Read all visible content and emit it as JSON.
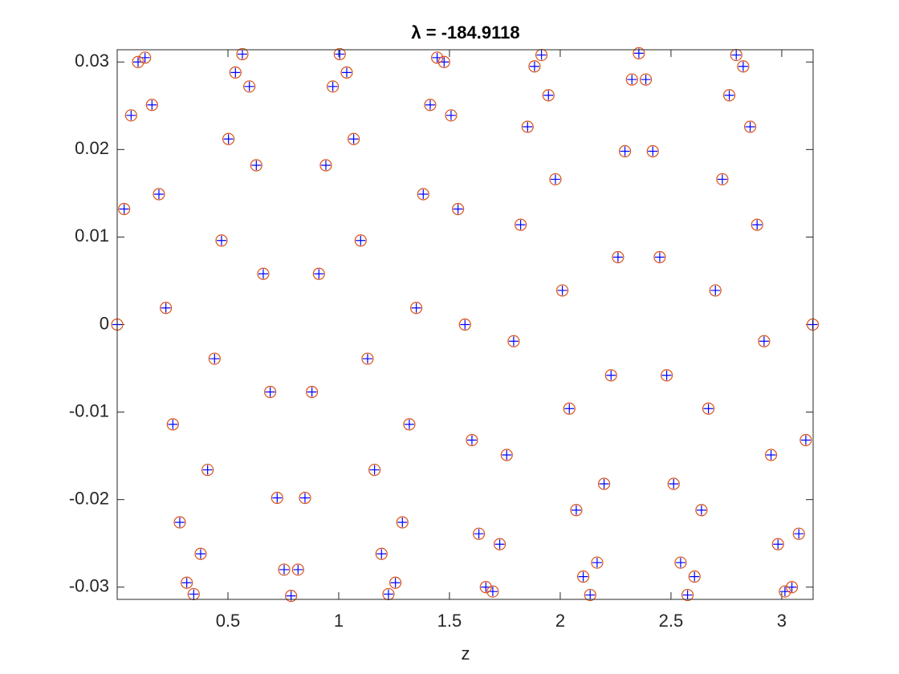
{
  "chart_data": {
    "type": "scatter",
    "title": "λ = -184.9118",
    "xlabel": "z",
    "xlim": [
      0,
      3.1416
    ],
    "ylim": [
      -0.0314,
      0.0314
    ],
    "xticks": [
      0.5,
      1,
      1.5,
      2,
      2.5,
      3
    ],
    "yticks": [
      -0.03,
      -0.02,
      -0.01,
      0,
      0.01,
      0.02,
      0.03
    ],
    "x": [
      0,
      0.0314,
      0.0628,
      0.0942,
      0.1256,
      0.157,
      0.1884,
      0.2198,
      0.2512,
      0.2826,
      0.314,
      0.3454,
      0.3768,
      0.4082,
      0.4396,
      0.471,
      0.5024,
      0.5338,
      0.5652,
      0.5966,
      0.628,
      0.6594,
      0.6908,
      0.7222,
      0.7536,
      0.785,
      0.8164,
      0.8478,
      0.8792,
      0.9106,
      0.942,
      0.9734,
      1.0048,
      1.0362,
      1.0676,
      1.099,
      1.1304,
      1.1618,
      1.1932,
      1.2246,
      1.256,
      1.2874,
      1.3188,
      1.3502,
      1.3816,
      1.413,
      1.4444,
      1.4758,
      1.5072,
      1.5386,
      1.57,
      1.6014,
      1.6328,
      1.6642,
      1.6956,
      1.727,
      1.7584,
      1.7898,
      1.8212,
      1.8526,
      1.884,
      1.9154,
      1.9468,
      1.9782,
      2.0096,
      2.041,
      2.0724,
      2.1038,
      2.1352,
      2.1666,
      2.198,
      2.2294,
      2.2608,
      2.2922,
      2.3236,
      2.355,
      2.3864,
      2.4178,
      2.4492,
      2.4806,
      2.512,
      2.5434,
      2.5748,
      2.6062,
      2.6376,
      2.669,
      2.7004,
      2.7318,
      2.7632,
      2.7946,
      2.826,
      2.8574,
      2.8888,
      2.9202,
      2.9516,
      2.983,
      3.0144,
      3.0458,
      3.0772,
      3.1086,
      3.14
    ],
    "series": [
      {
        "marker": "plus",
        "color": "#0000ff",
        "values": [
          0,
          0.0132,
          0.0239,
          0.03,
          0.0305,
          0.0251,
          0.0149,
          0.0019,
          -0.0114,
          -0.0226,
          -0.0295,
          -0.0308,
          -0.0262,
          -0.0166,
          -0.0039,
          0.0096,
          0.0212,
          0.0288,
          0.0309,
          0.0272,
          0.0182,
          0.0058,
          -0.0077,
          -0.0198,
          -0.028,
          -0.031,
          -0.028,
          -0.0198,
          -0.0077,
          0.0058,
          0.0182,
          0.0272,
          0.0309,
          0.0288,
          0.0212,
          0.0096,
          -0.0039,
          -0.0166,
          -0.0262,
          -0.0308,
          -0.0295,
          -0.0226,
          -0.0114,
          0.0019,
          0.0149,
          0.0251,
          0.0305,
          0.03,
          0.0239,
          0.0132,
          0,
          -0.0132,
          -0.0239,
          -0.03,
          -0.0305,
          -0.0251,
          -0.0149,
          -0.0019,
          0.0114,
          0.0226,
          0.0295,
          0.0308,
          0.0262,
          0.0166,
          0.0039,
          -0.0096,
          -0.0212,
          -0.0288,
          -0.0309,
          -0.0272,
          -0.0182,
          -0.0058,
          0.0077,
          0.0198,
          0.028,
          0.031,
          0.028,
          0.0198,
          0.0077,
          -0.0058,
          -0.0182,
          -0.0272,
          -0.0309,
          -0.0288,
          -0.0212,
          -0.0096,
          0.0039,
          0.0166,
          0.0262,
          0.0308,
          0.0295,
          0.0226,
          0.0114,
          -0.0019,
          -0.0149,
          -0.0251,
          -0.0305,
          -0.03,
          -0.0239,
          -0.0132,
          0
        ]
      },
      {
        "marker": "circle",
        "color": "#d95319",
        "values": [
          0,
          0.0132,
          0.0239,
          0.03,
          0.0305,
          0.0251,
          0.0149,
          0.0019,
          -0.0114,
          -0.0226,
          -0.0295,
          -0.0308,
          -0.0262,
          -0.0166,
          -0.0039,
          0.0096,
          0.0212,
          0.0288,
          0.0309,
          0.0272,
          0.0182,
          0.0058,
          -0.0077,
          -0.0198,
          -0.028,
          -0.031,
          -0.028,
          -0.0198,
          -0.0077,
          0.0058,
          0.0182,
          0.0272,
          0.0309,
          0.0288,
          0.0212,
          0.0096,
          -0.0039,
          -0.0166,
          -0.0262,
          -0.0308,
          -0.0295,
          -0.0226,
          -0.0114,
          0.0019,
          0.0149,
          0.0251,
          0.0305,
          0.03,
          0.0239,
          0.0132,
          0,
          -0.0132,
          -0.0239,
          -0.03,
          -0.0305,
          -0.0251,
          -0.0149,
          -0.0019,
          0.0114,
          0.0226,
          0.0295,
          0.0308,
          0.0262,
          0.0166,
          0.0039,
          -0.0096,
          -0.0212,
          -0.0288,
          -0.0309,
          -0.0272,
          -0.0182,
          -0.0058,
          0.0077,
          0.0198,
          0.028,
          0.031,
          0.028,
          0.0198,
          0.0077,
          -0.0058,
          -0.0182,
          -0.0272,
          -0.0309,
          -0.0288,
          -0.0212,
          -0.0096,
          0.0039,
          0.0166,
          0.0262,
          0.0308,
          0.0295,
          0.0226,
          0.0114,
          -0.0019,
          -0.0149,
          -0.0251,
          -0.0305,
          -0.03,
          -0.0239,
          -0.0132,
          0
        ]
      }
    ]
  }
}
